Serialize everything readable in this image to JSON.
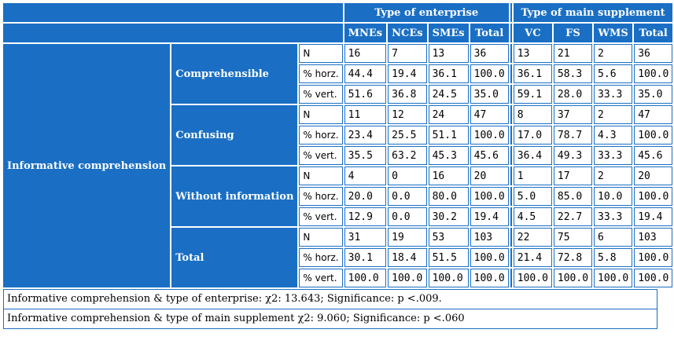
{
  "header": {
    "group_enterprise": "Type of enterprise",
    "group_supplement": "Type of main supplement",
    "enterprise_cols": [
      "MNEs",
      "NCEs",
      "SMEs",
      "Total"
    ],
    "supplement_cols": [
      "VC",
      "FS",
      "WMS",
      "Total"
    ]
  },
  "row_variable": "Informative comprehension",
  "groups": [
    {
      "label": "Comprehensible",
      "rows": [
        {
          "stat": "N",
          "ent": [
            "16",
            "7",
            "13",
            "36"
          ],
          "sup": [
            "13",
            "21",
            "2",
            "36"
          ]
        },
        {
          "stat": "% horz.",
          "ent": [
            "44.4",
            "19.4",
            "36.1",
            "100.0"
          ],
          "sup": [
            "36.1",
            "58.3",
            "5.6",
            "100.0"
          ]
        },
        {
          "stat": "% vert.",
          "ent": [
            "51.6",
            "36.8",
            "24.5",
            "35.0"
          ],
          "sup": [
            "59.1",
            "28.0",
            "33.3",
            "35.0"
          ]
        }
      ]
    },
    {
      "label": "Confusing",
      "rows": [
        {
          "stat": "N",
          "ent": [
            "11",
            "12",
            "24",
            "47"
          ],
          "sup": [
            "8",
            "37",
            "2",
            "47"
          ]
        },
        {
          "stat": "% horz.",
          "ent": [
            "23.4",
            "25.5",
            "51.1",
            "100.0"
          ],
          "sup": [
            "17.0",
            "78.7",
            "4.3",
            "100.0"
          ]
        },
        {
          "stat": "% vert.",
          "ent": [
            "35.5",
            "63.2",
            "45.3",
            "45.6"
          ],
          "sup": [
            "36.4",
            "49.3",
            "33.3",
            "45.6"
          ]
        }
      ]
    },
    {
      "label": "Without information",
      "rows": [
        {
          "stat": "N",
          "ent": [
            "4",
            "0",
            "16",
            "20"
          ],
          "sup": [
            "1",
            "17",
            "2",
            "20"
          ]
        },
        {
          "stat": "% horz.",
          "ent": [
            "20.0",
            "0.0",
            "80.0",
            "100.0"
          ],
          "sup": [
            "5.0",
            "85.0",
            "10.0",
            "100.0"
          ]
        },
        {
          "stat": "% vert.",
          "ent": [
            "12.9",
            "0.0",
            "30.2",
            "19.4"
          ],
          "sup": [
            "4.5",
            "22.7",
            "33.3",
            "19.4"
          ]
        }
      ]
    },
    {
      "label": "Total",
      "rows": [
        {
          "stat": "N",
          "ent": [
            "31",
            "19",
            "53",
            "103"
          ],
          "sup": [
            "22",
            "75",
            "6",
            "103"
          ]
        },
        {
          "stat": "% horz.",
          "ent": [
            "30.1",
            "18.4",
            "51.5",
            "100.0"
          ],
          "sup": [
            "21.4",
            "72.8",
            "5.8",
            "100.0"
          ]
        },
        {
          "stat": "% vert.",
          "ent": [
            "100.0",
            "100.0",
            "100.0",
            "100.0"
          ],
          "sup": [
            "100.0",
            "100.0",
            "100.0",
            "100.0"
          ]
        }
      ]
    }
  ],
  "footnotes": [
    "Informative comprehension & type of enterprise: χ2: 13.643; Significance: p <.009.",
    "Informative comprehension & type of main supplement χ2: 9.060; Significance: p <.060"
  ],
  "colors": {
    "header_bg": "#1a6fc4",
    "header_text": "#ffffff",
    "cell_bg": "#ffffff"
  }
}
